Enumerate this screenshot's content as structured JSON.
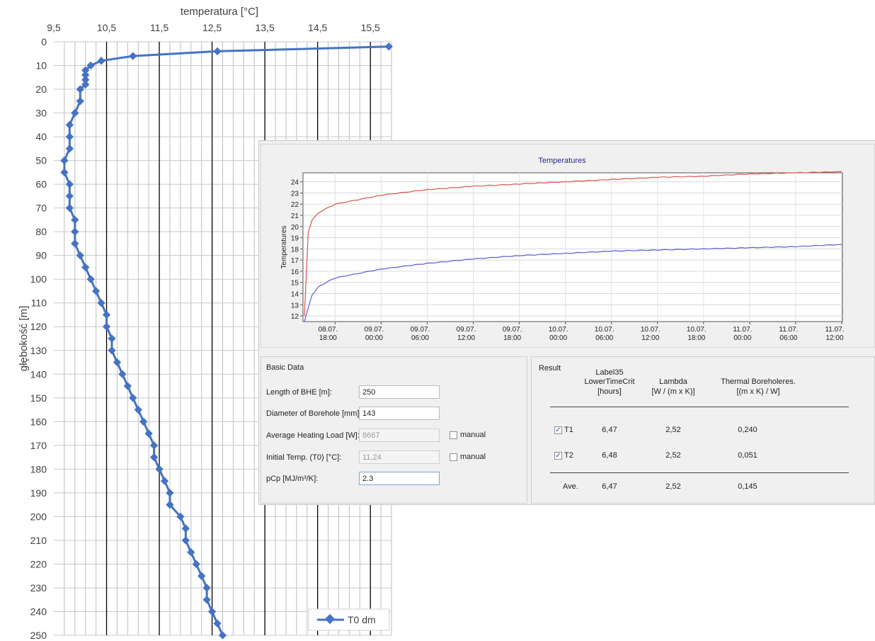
{
  "left_chart": {
    "x_title": "temperatura [°C]",
    "y_title": "głębokość [m]",
    "x_ticks": [
      "9,5",
      "10,5",
      "11,5",
      "12,5",
      "13,5",
      "14,5",
      "15,5"
    ],
    "legend": "T0 dm"
  },
  "temps_chart": {
    "title": "Temperatures",
    "y_label": "Temperatures",
    "y_ticks": [
      "12",
      "13",
      "14",
      "15",
      "16",
      "17",
      "18",
      "19",
      "20",
      "21",
      "22",
      "23",
      "24"
    ],
    "x_ticks": [
      {
        "date": "08.07.",
        "time": "18:00"
      },
      {
        "date": "09.07.",
        "time": "00:00"
      },
      {
        "date": "09.07.",
        "time": "06:00"
      },
      {
        "date": "09.07.",
        "time": "12:00"
      },
      {
        "date": "09.07.",
        "time": "18:00"
      },
      {
        "date": "10.07.",
        "time": "00:00"
      },
      {
        "date": "10.07.",
        "time": "06:00"
      },
      {
        "date": "10.07.",
        "time": "12:00"
      },
      {
        "date": "10.07.",
        "time": "18:00"
      },
      {
        "date": "11.07.",
        "time": "00:00"
      },
      {
        "date": "11.07.",
        "time": "06:00"
      },
      {
        "date": "11.07.",
        "time": "12:00"
      }
    ]
  },
  "basic": {
    "title": "Basic Data",
    "length_label": "Length of BHE [m]:",
    "length_value": "250",
    "diameter_label": "Diameter of Borehole [mm]:",
    "diameter_value": "143",
    "load_label": "Average Heating Load [W]:",
    "load_value": "8667",
    "load_manual": "manual",
    "temp_label": "Initial Temp. (T0) [°C]:",
    "temp_value": "11,24",
    "temp_manual": "manual",
    "pcp_label": "pCp [MJ/m³/K]:",
    "pcp_value": "2.3"
  },
  "result": {
    "title": "Result",
    "col1_line1": "Label35",
    "col1_line2": "LowerTimeCrit",
    "col1_line3": "[hours]",
    "col2_line1": "Lambda",
    "col2_line2": "[W / (m x K)]",
    "col3_line1": "Thermal Boreholeres.",
    "col3_line2": "[(m x K) / W]",
    "rows": [
      {
        "label": "T1",
        "time": "6,47",
        "lambda": "2,52",
        "res": "0,240",
        "checked": true
      },
      {
        "label": "T2",
        "time": "6,48",
        "lambda": "2,52",
        "res": "0,051",
        "checked": true
      }
    ],
    "ave_label": "Ave.",
    "ave_time": "6,47",
    "ave_lambda": "2,52",
    "ave_res": "0,145"
  },
  "chart_data": [
    {
      "type": "line",
      "title": "",
      "xlabel": "temperatura [°C]",
      "ylabel": "głębokość [m]",
      "xlim": [
        9.5,
        15.9
      ],
      "ylim": [
        0,
        250
      ],
      "y_inverted": true,
      "x_axis_position": "top",
      "legend_position": "bottom-right",
      "series": [
        {
          "name": "T0 dm",
          "color": "#4472c4",
          "points": [
            [
              15.85,
              2
            ],
            [
              12.6,
              4
            ],
            [
              11.0,
              6
            ],
            [
              10.4,
              8
            ],
            [
              10.2,
              10
            ],
            [
              10.1,
              12
            ],
            [
              10.1,
              14
            ],
            [
              10.1,
              16
            ],
            [
              10.1,
              18
            ],
            [
              10.0,
              20
            ],
            [
              10.0,
              25
            ],
            [
              9.9,
              30
            ],
            [
              9.8,
              35
            ],
            [
              9.8,
              40
            ],
            [
              9.8,
              45
            ],
            [
              9.7,
              50
            ],
            [
              9.7,
              55
            ],
            [
              9.8,
              60
            ],
            [
              9.8,
              65
            ],
            [
              9.8,
              70
            ],
            [
              9.9,
              75
            ],
            [
              9.9,
              80
            ],
            [
              9.9,
              85
            ],
            [
              10.0,
              90
            ],
            [
              10.1,
              95
            ],
            [
              10.2,
              100
            ],
            [
              10.3,
              105
            ],
            [
              10.4,
              110
            ],
            [
              10.5,
              115
            ],
            [
              10.5,
              120
            ],
            [
              10.6,
              125
            ],
            [
              10.6,
              130
            ],
            [
              10.7,
              135
            ],
            [
              10.8,
              140
            ],
            [
              10.9,
              145
            ],
            [
              11.0,
              150
            ],
            [
              11.1,
              155
            ],
            [
              11.2,
              160
            ],
            [
              11.3,
              165
            ],
            [
              11.4,
              170
            ],
            [
              11.4,
              175
            ],
            [
              11.5,
              180
            ],
            [
              11.6,
              185
            ],
            [
              11.7,
              190
            ],
            [
              11.7,
              195
            ],
            [
              11.9,
              200
            ],
            [
              12.0,
              205
            ],
            [
              12.0,
              210
            ],
            [
              12.1,
              215
            ],
            [
              12.2,
              220
            ],
            [
              12.3,
              225
            ],
            [
              12.4,
              230
            ],
            [
              12.4,
              235
            ],
            [
              12.5,
              240
            ],
            [
              12.6,
              245
            ],
            [
              12.7,
              250
            ]
          ]
        }
      ]
    },
    {
      "type": "line",
      "title": "Temperatures",
      "ylabel": "Temperatures",
      "ylim": [
        11.5,
        24.8
      ],
      "x_ticks": [
        "08.07. 18:00",
        "09.07. 00:00",
        "09.07. 06:00",
        "09.07. 12:00",
        "09.07. 18:00",
        "10.07. 00:00",
        "10.07. 06:00",
        "10.07. 12:00",
        "10.07. 18:00",
        "11.07. 00:00",
        "11.07. 06:00",
        "11.07. 12:00"
      ],
      "series": [
        {
          "name": "T1",
          "color": "#d9534f",
          "points": [
            [
              "08.07. 14:00",
              12.0
            ],
            [
              "08.07. 14:30",
              19.5
            ],
            [
              "08.07. 15:00",
              20.6
            ],
            [
              "08.07. 16:00",
              21.3
            ],
            [
              "08.07. 18:00",
              22.0
            ],
            [
              "09.07. 00:00",
              22.8
            ],
            [
              "09.07. 06:00",
              23.3
            ],
            [
              "09.07. 12:00",
              23.6
            ],
            [
              "09.07. 18:00",
              23.8
            ],
            [
              "10.07. 00:00",
              24.0
            ],
            [
              "10.07. 06:00",
              24.2
            ],
            [
              "10.07. 12:00",
              24.4
            ],
            [
              "10.07. 18:00",
              24.5
            ],
            [
              "11.07. 00:00",
              24.7
            ],
            [
              "11.07. 06:00",
              24.8
            ],
            [
              "11.07. 12:00",
              24.9
            ]
          ]
        },
        {
          "name": "T2",
          "color": "#5b5bd0",
          "points": [
            [
              "08.07. 14:00",
              11.5
            ],
            [
              "08.07. 15:00",
              13.9
            ],
            [
              "08.07. 16:00",
              14.7
            ],
            [
              "08.07. 18:00",
              15.4
            ],
            [
              "09.07. 00:00",
              16.2
            ],
            [
              "09.07. 06:00",
              16.7
            ],
            [
              "09.07. 12:00",
              17.1
            ],
            [
              "09.07. 18:00",
              17.4
            ],
            [
              "10.07. 00:00",
              17.6
            ],
            [
              "10.07. 06:00",
              17.8
            ],
            [
              "10.07. 12:00",
              17.9
            ],
            [
              "10.07. 18:00",
              18.0
            ],
            [
              "11.07. 00:00",
              18.1
            ],
            [
              "11.07. 06:00",
              18.2
            ],
            [
              "11.07. 12:00",
              18.4
            ]
          ]
        }
      ]
    }
  ]
}
